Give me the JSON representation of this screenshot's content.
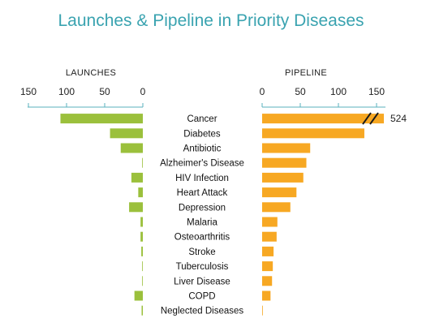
{
  "title": "Launches & Pipeline in Priority Diseases",
  "chart_data": {
    "type": "bar",
    "layout": "back-to-back horizontal bars",
    "categories": [
      "Cancer",
      "Diabetes",
      "Antibiotic",
      "Alzheimer's Disease",
      "HIV Infection",
      "Heart Attack",
      "Depression",
      "Malaria",
      "Osteoarthritis",
      "Stroke",
      "Tuberculosis",
      "Liver Disease",
      "COPD",
      "Neglected Diseases"
    ],
    "launches": {
      "label": "LAUNCHES",
      "color": "#9bc03c",
      "ticks": [
        150,
        100,
        50,
        0
      ],
      "xlim": [
        0,
        150
      ],
      "values": [
        108,
        43,
        29,
        0,
        15,
        6,
        18,
        3,
        3,
        2,
        0,
        0,
        11,
        1
      ]
    },
    "pipeline": {
      "label": "PIPELINE",
      "color": "#f7a823",
      "ticks": [
        0,
        50,
        100,
        150
      ],
      "xlim": [
        0,
        150
      ],
      "values": [
        524,
        134,
        63,
        58,
        54,
        45,
        37,
        20,
        19,
        15,
        14,
        13,
        11,
        0
      ],
      "broken_axis_value_label": "524"
    }
  }
}
